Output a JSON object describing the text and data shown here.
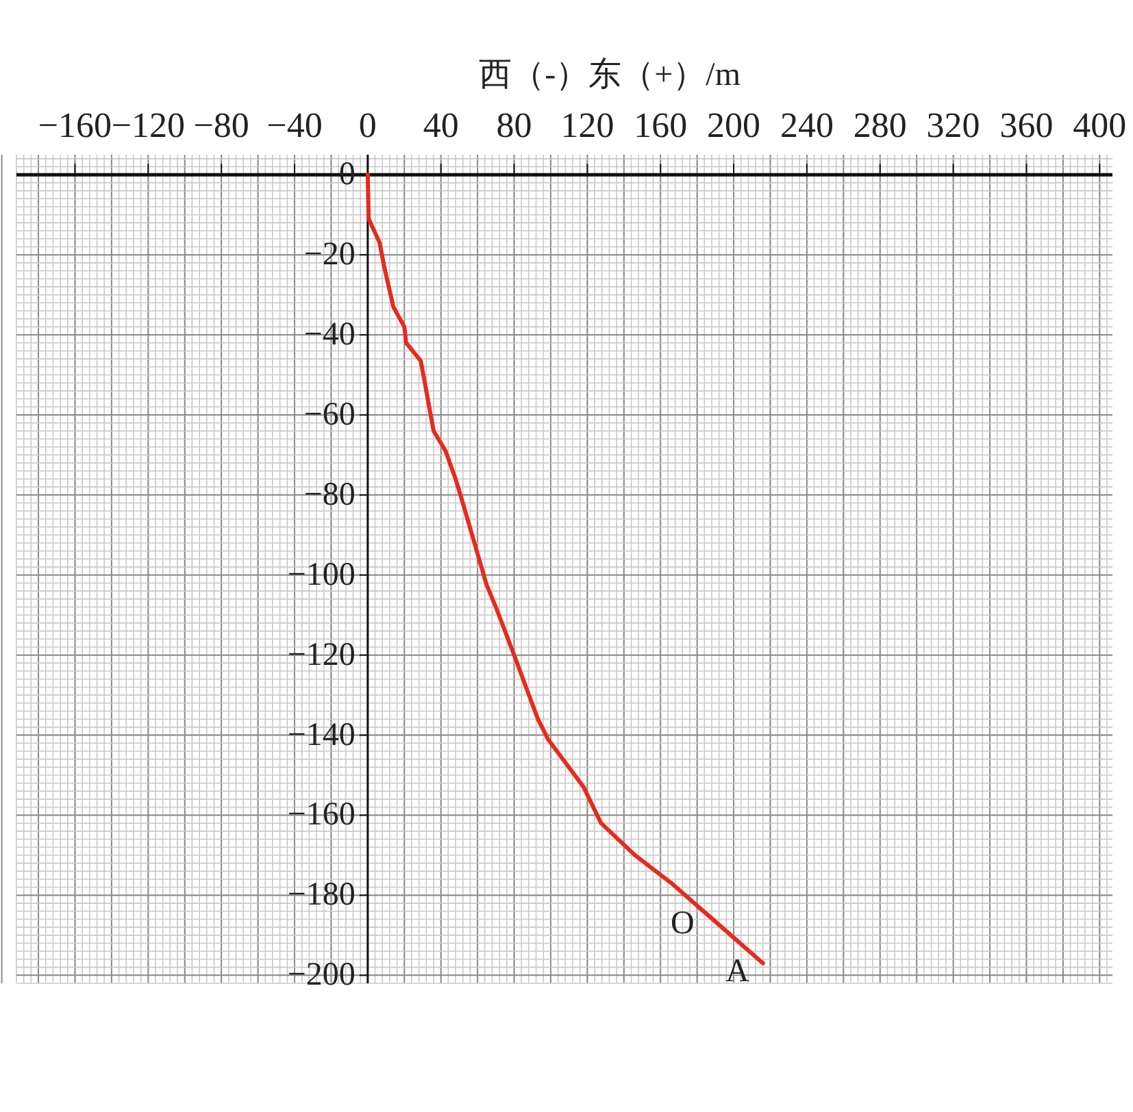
{
  "chart_data": {
    "type": "line",
    "xlabel": "西（-）东（+）/m",
    "series": [
      {
        "color": "#e52b1e",
        "x": [
          0,
          0.5,
          6.5,
          9,
          14,
          20,
          21,
          29,
          36,
          42.5,
          48,
          51,
          65,
          70,
          80,
          93,
          98.5,
          118,
          127.5,
          146,
          166,
          186,
          216
        ],
        "values": [
          0,
          -11,
          -17,
          -23,
          -33,
          -38,
          -42,
          -46.5,
          -64,
          -69,
          -76,
          -80.5,
          -102.5,
          -108,
          -120,
          -136,
          -141,
          -153,
          -162,
          -170,
          -177,
          -185,
          -197
        ]
      }
    ],
    "xlim": [
      -192,
      407
    ],
    "ylim": [
      -202,
      5
    ],
    "xticks": [
      -160,
      -120,
      -80,
      -40,
      0,
      40,
      80,
      120,
      160,
      200,
      240,
      280,
      320,
      360,
      400
    ],
    "yticks": [
      0,
      -20,
      -40,
      -60,
      -80,
      -100,
      -120,
      -140,
      -160,
      -180,
      -200
    ],
    "grid": true,
    "annotations": [
      {
        "text": "O",
        "x": 186,
        "y": -185
      },
      {
        "text": "A",
        "x": 216,
        "y": -197
      }
    ]
  }
}
